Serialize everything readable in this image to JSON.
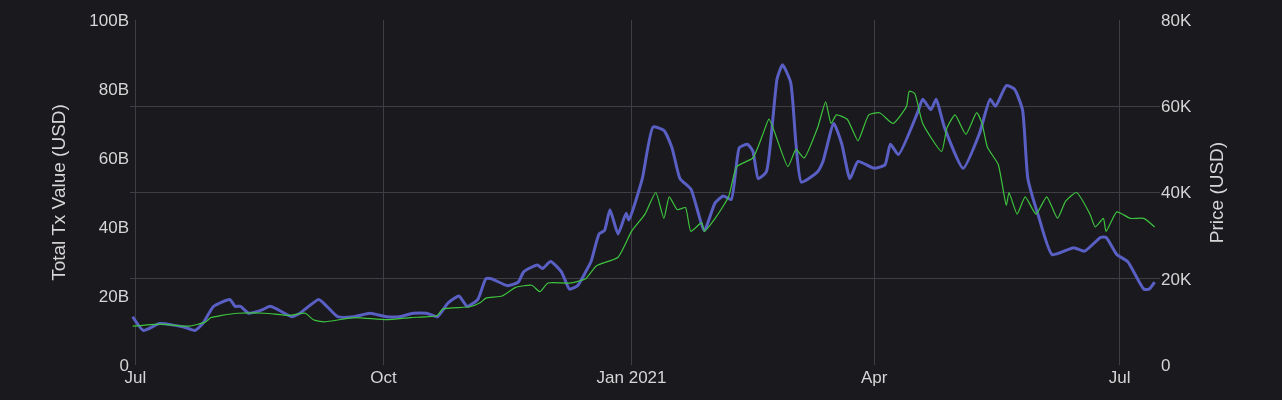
{
  "chart_data": {
    "type": "line",
    "ylabel": "Total Tx Value (USD)",
    "y2label": "Price (USD)",
    "xlim": [
      "2020-06-29",
      "2021-07-16"
    ],
    "xticks": [
      {
        "value": "2020-07-01",
        "label": "Jul"
      },
      {
        "value": "2020-10-01",
        "label": "Oct"
      },
      {
        "value": "2021-01-01",
        "label": "Jan 2021"
      },
      {
        "value": "2021-04-01",
        "label": "Apr"
      },
      {
        "value": "2021-07-01",
        "label": "Jul"
      }
    ],
    "ylim": [
      0,
      100
    ],
    "yticks": [
      0,
      {
        "value": 20,
        "label": "20B"
      },
      {
        "value": 40,
        "label": "40B"
      },
      {
        "value": 60,
        "label": "60B"
      },
      {
        "value": 80,
        "label": "80B"
      },
      {
        "value": 100,
        "label": "100B"
      }
    ],
    "y2lim": [
      0,
      80
    ],
    "y2ticks": [
      0,
      {
        "value": 20,
        "label": "20K"
      },
      {
        "value": 40,
        "label": "40K"
      },
      {
        "value": 60,
        "label": "60K"
      },
      {
        "value": 80,
        "label": "80K"
      }
    ],
    "grid": true,
    "series": [
      {
        "color": "#5a5fc4",
        "axis": "y",
        "x": [
          "2020-06-30",
          "2020-07-04",
          "2020-07-10",
          "2020-07-19",
          "2020-07-23",
          "2020-07-26",
          "2020-07-30",
          "2020-08-05",
          "2020-08-07",
          "2020-08-09",
          "2020-08-12",
          "2020-08-17",
          "2020-08-20",
          "2020-08-23",
          "2020-08-28",
          "2020-08-31",
          "2020-09-07",
          "2020-09-10",
          "2020-09-14",
          "2020-09-20",
          "2020-09-26",
          "2020-10-02",
          "2020-10-07",
          "2020-10-12",
          "2020-10-17",
          "2020-10-21",
          "2020-10-25",
          "2020-10-29",
          "2020-11-01",
          "2020-11-05",
          "2020-11-08",
          "2020-11-10",
          "2020-11-16",
          "2020-11-20",
          "2020-11-22",
          "2020-11-27",
          "2020-11-29",
          "2020-12-02",
          "2020-12-06",
          "2020-12-09",
          "2020-12-12",
          "2020-12-15",
          "2020-12-17",
          "2020-12-20",
          "2020-12-22",
          "2020-12-24",
          "2020-12-27",
          "2020-12-30",
          "2020-12-31",
          "2021-01-05",
          "2021-01-09",
          "2021-01-13",
          "2021-01-16",
          "2021-01-19",
          "2021-01-23",
          "2021-01-28",
          "2021-02-01",
          "2021-02-04",
          "2021-02-07",
          "2021-02-10",
          "2021-02-13",
          "2021-02-15",
          "2021-02-17",
          "2021-02-20",
          "2021-02-24",
          "2021-02-26",
          "2021-03-01",
          "2021-03-03",
          "2021-03-05",
          "2021-03-11",
          "2021-03-13",
          "2021-03-17",
          "2021-03-20",
          "2021-03-23",
          "2021-03-26",
          "2021-04-01",
          "2021-04-05",
          "2021-04-07",
          "2021-04-10",
          "2021-04-17",
          "2021-04-19",
          "2021-04-22",
          "2021-04-24",
          "2021-04-27",
          "2021-05-04",
          "2021-05-10",
          "2021-05-14",
          "2021-05-16",
          "2021-05-20",
          "2021-05-23",
          "2021-05-26",
          "2021-05-28",
          "2021-06-01",
          "2021-06-06",
          "2021-06-14",
          "2021-06-18",
          "2021-06-24",
          "2021-06-26",
          "2021-06-30",
          "2021-07-04",
          "2021-07-10",
          "2021-07-12",
          "2021-07-14"
        ],
        "values": [
          14,
          10,
          12,
          11,
          10,
          12,
          17,
          19,
          17,
          17,
          15,
          16,
          17,
          16,
          14,
          15,
          19,
          17,
          14,
          14,
          15,
          14,
          14,
          15,
          15,
          14,
          18,
          20,
          17,
          19,
          25,
          25,
          23,
          24,
          27,
          29,
          28,
          30,
          27,
          22,
          23,
          27,
          30,
          38,
          39,
          45,
          38,
          44,
          42,
          54,
          69,
          68,
          63,
          54,
          51,
          39,
          47,
          49,
          48,
          63,
          64,
          62,
          54,
          56,
          83,
          87,
          82,
          64,
          53,
          56,
          59,
          70,
          64,
          54,
          59,
          57,
          58,
          64,
          61,
          73,
          77,
          74,
          77,
          69,
          57,
          67,
          77,
          75,
          81,
          80,
          74,
          54,
          43,
          32,
          34,
          33,
          37,
          37,
          32,
          30,
          22,
          22,
          24
        ]
      },
      {
        "color": "#3ec43e",
        "axis": "y2",
        "x": [
          "2020-06-30",
          "2020-07-10",
          "2020-07-21",
          "2020-07-27",
          "2020-07-29",
          "2020-08-02",
          "2020-08-08",
          "2020-08-18",
          "2020-08-27",
          "2020-09-02",
          "2020-09-05",
          "2020-09-09",
          "2020-09-20",
          "2020-10-02",
          "2020-10-11",
          "2020-10-21",
          "2020-10-23",
          "2020-11-02",
          "2020-11-06",
          "2020-11-08",
          "2020-11-14",
          "2020-11-19",
          "2020-11-25",
          "2020-11-28",
          "2020-12-01",
          "2020-12-09",
          "2020-12-15",
          "2020-12-19",
          "2020-12-27",
          "2021-01-01",
          "2021-01-06",
          "2021-01-10",
          "2021-01-13",
          "2021-01-15",
          "2021-01-18",
          "2021-01-21",
          "2021-01-23",
          "2021-01-27",
          "2021-01-28",
          "2021-02-01",
          "2021-02-06",
          "2021-02-09",
          "2021-02-15",
          "2021-02-19",
          "2021-02-21",
          "2021-02-28",
          "2021-03-03",
          "2021-03-06",
          "2021-03-11",
          "2021-03-14",
          "2021-03-16",
          "2021-03-18",
          "2021-03-22",
          "2021-03-26",
          "2021-03-30",
          "2021-04-03",
          "2021-04-08",
          "2021-04-13",
          "2021-04-14",
          "2021-04-16",
          "2021-04-19",
          "2021-04-26",
          "2021-04-28",
          "2021-05-01",
          "2021-05-05",
          "2021-05-09",
          "2021-05-11",
          "2021-05-13",
          "2021-05-17",
          "2021-05-20",
          "2021-05-21",
          "2021-05-24",
          "2021-05-27",
          "2021-05-31",
          "2021-06-04",
          "2021-06-08",
          "2021-06-11",
          "2021-06-15",
          "2021-06-20",
          "2021-06-22",
          "2021-06-25",
          "2021-06-26",
          "2021-06-30",
          "2021-07-05",
          "2021-07-10",
          "2021-07-14"
        ],
        "values": [
          9,
          9.5,
          9,
          10,
          11,
          11.5,
          12,
          12,
          11.5,
          12,
          10.5,
          10,
          11,
          10.5,
          11,
          11.5,
          13,
          13.5,
          14.5,
          15.5,
          16,
          18,
          18.5,
          17,
          19,
          19,
          20,
          23,
          25,
          31,
          35,
          40,
          34,
          39,
          36,
          36.5,
          31,
          33,
          31,
          34,
          39,
          46,
          48,
          54,
          57,
          46,
          50,
          48,
          55,
          61,
          56,
          58,
          57,
          52,
          58,
          58.5,
          56,
          60,
          63.5,
          63,
          56,
          49.5,
          55,
          58,
          53.5,
          58.5,
          56,
          50.5,
          46.5,
          37,
          40,
          35,
          39,
          35,
          39,
          34,
          38,
          40,
          35,
          32,
          34,
          31,
          35.5,
          34,
          34,
          32
        ]
      }
    ]
  }
}
